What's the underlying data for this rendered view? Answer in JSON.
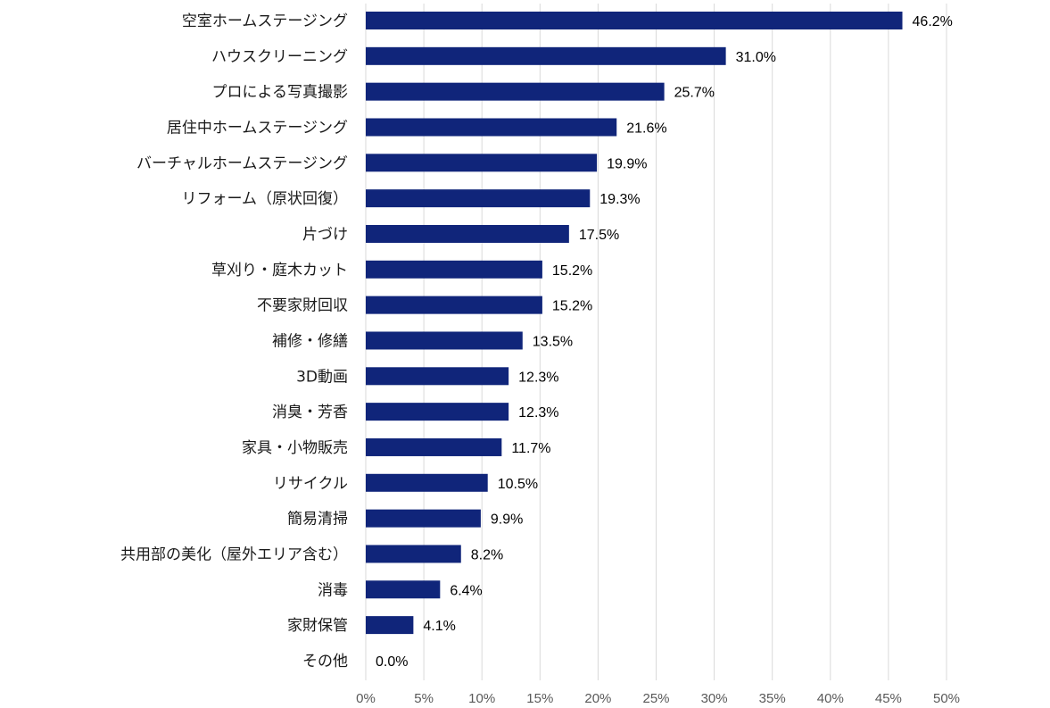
{
  "chart_data": {
    "type": "bar",
    "orientation": "horizontal",
    "categories": [
      "空室ホームステージング",
      "ハウスクリーニング",
      "プロによる写真撮影",
      "居住中ホームステージング",
      "バーチャルホームステージング",
      "リフォーム（原状回復）",
      "片づけ",
      "草刈り・庭木カット",
      "不要家財回収",
      "補修・修繕",
      "3D動画",
      "消臭・芳香",
      "家具・小物販売",
      "リサイクル",
      "簡易清掃",
      "共用部の美化（屋外エリア含む）",
      "消毒",
      "家財保管",
      "その他"
    ],
    "values": [
      46.2,
      31.0,
      25.7,
      21.6,
      19.9,
      19.3,
      17.5,
      15.2,
      15.2,
      13.5,
      12.3,
      12.3,
      11.7,
      10.5,
      9.9,
      8.2,
      6.4,
      4.1,
      0.0
    ],
    "value_labels": [
      "46.2%",
      "31.0%",
      "25.7%",
      "21.6%",
      "19.9%",
      "19.3%",
      "17.5%",
      "15.2%",
      "15.2%",
      "13.5%",
      "12.3%",
      "12.3%",
      "11.7%",
      "10.5%",
      "9.9%",
      "8.2%",
      "6.4%",
      "4.1%",
      "0.0%"
    ],
    "xlim": [
      0,
      50
    ],
    "xticks": [
      0,
      5,
      10,
      15,
      20,
      25,
      30,
      35,
      40,
      45,
      50
    ],
    "xtick_labels": [
      "0%",
      "5%",
      "10%",
      "15%",
      "20%",
      "25%",
      "30%",
      "35%",
      "40%",
      "45%",
      "50%"
    ],
    "grid": true,
    "bar_color": "#10257a",
    "title": "",
    "xlabel": "",
    "ylabel": ""
  }
}
